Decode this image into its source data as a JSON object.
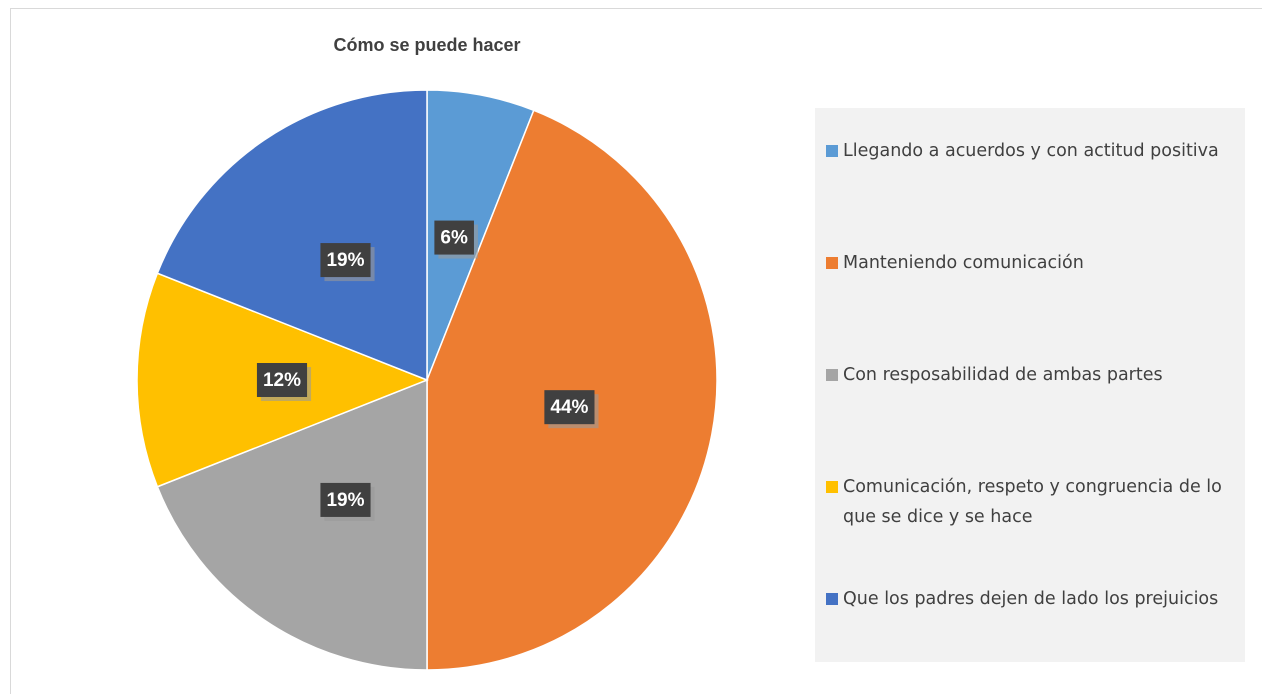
{
  "chart_data": {
    "type": "pie",
    "title": "Cómo se puede hacer",
    "categories": [
      "Llegando a acuerdos y con actitud positiva",
      "Manteniendo comunicación",
      "Con resposabilidad de ambas partes",
      "Comunicación, respeto y congruencia de lo que se dice y se hace",
      "Que los padres dejen de lado los prejuicios"
    ],
    "values": [
      6,
      44,
      19,
      12,
      19
    ],
    "value_labels": [
      "6%",
      "44%",
      "19%",
      "12%",
      "19%"
    ],
    "colors": [
      "#5b9bd5",
      "#ed7d31",
      "#a5a5a5",
      "#ffc000",
      "#4472c4"
    ],
    "legend": "right"
  }
}
